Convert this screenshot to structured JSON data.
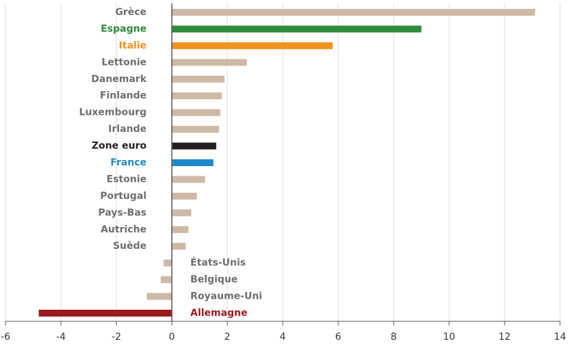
{
  "chart_data": {
    "type": "barh",
    "categories": [
      "Grèce",
      "Espagne",
      "Italie",
      "Lettonie",
      "Danemark",
      "Finlande",
      "Luxembourg",
      "Irlande",
      "Zone euro",
      "France",
      "Estonie",
      "Portugal",
      "Pays-Bas",
      "Autriche",
      "Suède",
      "États-Unis",
      "Belgique",
      "Royaume-Uni",
      "Allemagne"
    ],
    "values": [
      13.1,
      9.0,
      5.8,
      2.7,
      1.9,
      1.8,
      1.75,
      1.7,
      1.6,
      1.5,
      1.2,
      0.9,
      0.7,
      0.6,
      0.5,
      -0.3,
      -0.4,
      -0.9,
      -4.8
    ],
    "colors": [
      "#cdb9a5",
      "#2e8b3a",
      "#f39220",
      "#cdb9a5",
      "#cdb9a5",
      "#cdb9a5",
      "#cdb9a5",
      "#cdb9a5",
      "#231f20",
      "#1f88c9",
      "#cdb9a5",
      "#cdb9a5",
      "#cdb9a5",
      "#cdb9a5",
      "#cdb9a5",
      "#cdb9a5",
      "#cdb9a5",
      "#cdb9a5",
      "#9b1b1e"
    ],
    "label_colors": [
      "#6d6e71",
      "#2e8b3a",
      "#f39220",
      "#6d6e71",
      "#6d6e71",
      "#6d6e71",
      "#6d6e71",
      "#6d6e71",
      "#231f20",
      "#1f88c9",
      "#6d6e71",
      "#6d6e71",
      "#6d6e71",
      "#6d6e71",
      "#6d6e71",
      "#6d6e71",
      "#6d6e71",
      "#6d6e71",
      "#9b1b1e"
    ],
    "xlim": [
      -6,
      14
    ],
    "xticks": [
      -6,
      -4,
      -2,
      0,
      2,
      4,
      6,
      8,
      10,
      12,
      14
    ],
    "grid": true
  }
}
